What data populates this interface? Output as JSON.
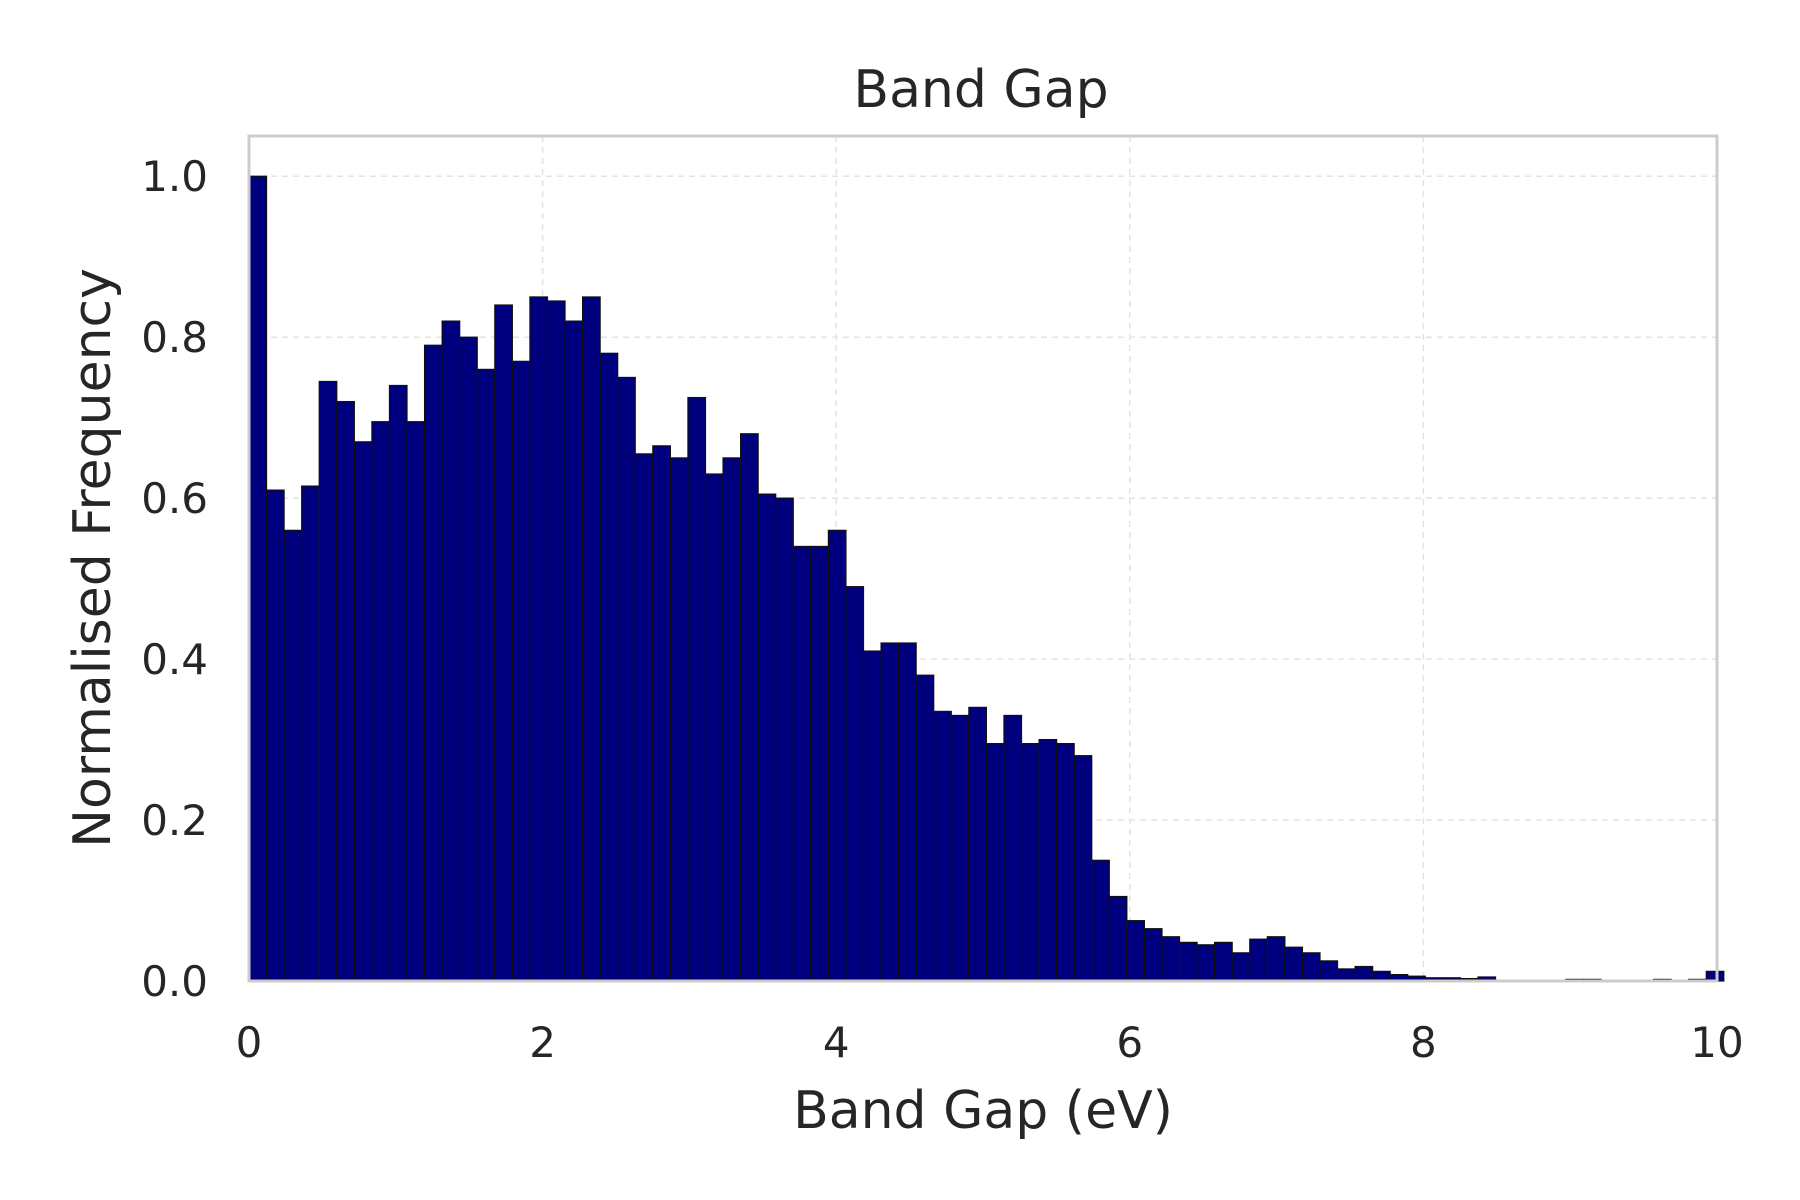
{
  "chart_data": {
    "type": "bar",
    "title": "Band Gap",
    "xlabel": "Band Gap (eV)",
    "ylabel": "Normalised Frequency",
    "xlim": [
      0,
      10
    ],
    "ylim": [
      0,
      1.05
    ],
    "xticks": [
      0,
      2,
      4,
      6,
      8,
      10
    ],
    "xtick_labels": [
      "0",
      "2",
      "4",
      "6",
      "8",
      "10"
    ],
    "yticks": [
      0,
      0.2,
      0.4,
      0.6,
      0.8,
      1.0
    ],
    "ytick_labels": [
      "0.0",
      "0.2",
      "0.4",
      "0.6",
      "0.8",
      "1.0"
    ],
    "grid": true,
    "bar_color": "#00007f",
    "bin_width": 0.1196,
    "bin_start": 0.0,
    "values": [
      1.0,
      0.61,
      0.56,
      0.615,
      0.745,
      0.72,
      0.67,
      0.695,
      0.74,
      0.695,
      0.79,
      0.82,
      0.8,
      0.76,
      0.84,
      0.77,
      0.85,
      0.845,
      0.82,
      0.85,
      0.78,
      0.75,
      0.655,
      0.665,
      0.65,
      0.725,
      0.63,
      0.65,
      0.68,
      0.605,
      0.6,
      0.54,
      0.54,
      0.56,
      0.49,
      0.41,
      0.42,
      0.42,
      0.38,
      0.335,
      0.33,
      0.34,
      0.295,
      0.33,
      0.295,
      0.3,
      0.295,
      0.28,
      0.15,
      0.105,
      0.075,
      0.065,
      0.055,
      0.048,
      0.045,
      0.048,
      0.035,
      0.052,
      0.055,
      0.042,
      0.035,
      0.025,
      0.015,
      0.018,
      0.012,
      0.008,
      0.006,
      0.004,
      0.004,
      0.003,
      0.005,
      0.0,
      0.0,
      0.0,
      0.0,
      0.002,
      0.002,
      0.0,
      0.0,
      0.0,
      0.002,
      0.0,
      0.002,
      0.012,
      0.0
    ]
  }
}
